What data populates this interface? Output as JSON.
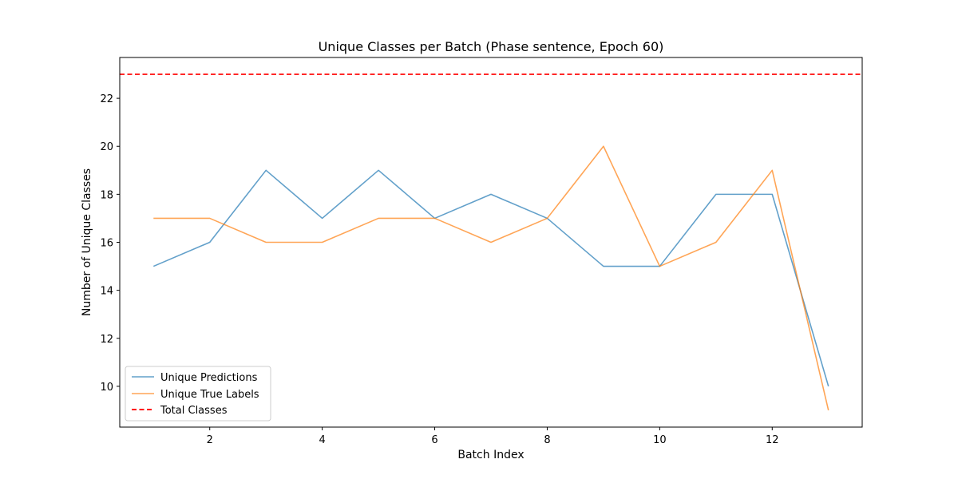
{
  "chart_data": {
    "type": "line",
    "title": "Unique Classes per Batch (Phase sentence, Epoch 60)",
    "xlabel": "Batch Index",
    "ylabel": "Number of Unique Classes",
    "x": [
      1,
      2,
      3,
      4,
      5,
      6,
      7,
      8,
      9,
      10,
      11,
      12,
      13
    ],
    "xlim": [
      0.4,
      13.6
    ],
    "ylim": [
      8.3,
      23.7
    ],
    "xticks": [
      2,
      4,
      6,
      8,
      10,
      12
    ],
    "yticks": [
      10,
      12,
      14,
      16,
      18,
      20,
      22
    ],
    "grid": false,
    "legend_position": "lower-left",
    "series": [
      {
        "name": "Unique Predictions",
        "color": "#1f77b4",
        "style": "solid",
        "values": [
          15,
          16,
          19,
          17,
          19,
          17,
          18,
          17,
          15,
          15,
          18,
          18,
          10
        ]
      },
      {
        "name": "Unique True Labels",
        "color": "#ff7f0e",
        "style": "solid",
        "values": [
          17,
          17,
          16,
          16,
          17,
          17,
          16,
          17,
          20,
          15,
          16,
          19,
          9
        ]
      }
    ],
    "reference_lines": [
      {
        "name": "Total Classes",
        "orientation": "horizontal",
        "value": 23,
        "color": "#ff0000",
        "style": "dashed"
      }
    ]
  }
}
